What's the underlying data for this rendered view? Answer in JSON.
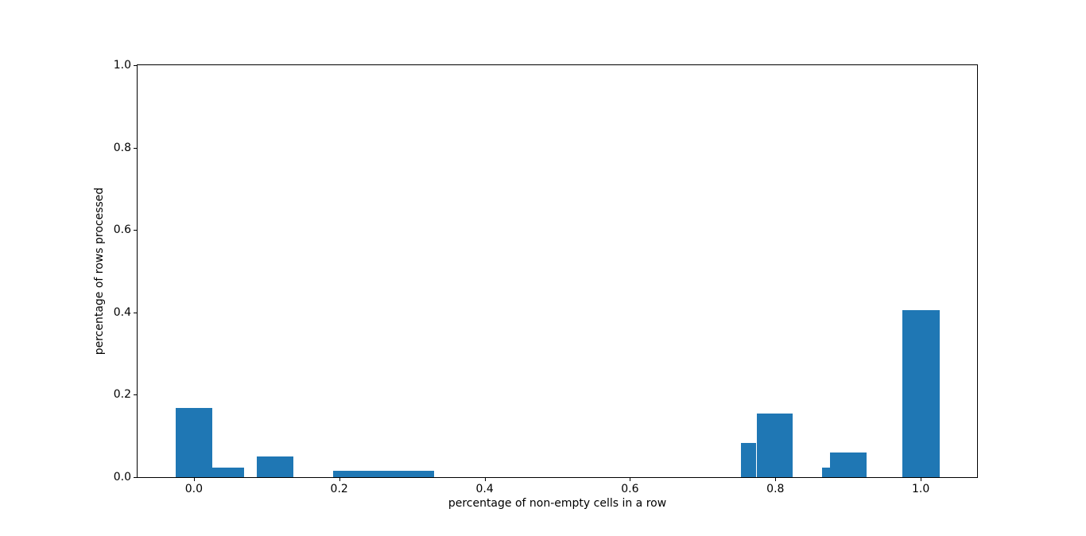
{
  "chart_data": {
    "type": "bar",
    "title": "",
    "xlabel": "percentage of non-empty cells in a row",
    "ylabel": "percentage of rows processed",
    "xlim": [
      -0.0775,
      1.0775
    ],
    "ylim": [
      0,
      1.0
    ],
    "grid": false,
    "legend": null,
    "bar_color": "#1f77b4",
    "frame_color": "#000000",
    "background_color": "#ffffff",
    "xticks": [
      {
        "value": 0.0,
        "label": "0.0"
      },
      {
        "value": 0.2,
        "label": "0.2"
      },
      {
        "value": 0.4,
        "label": "0.4"
      },
      {
        "value": 0.6,
        "label": "0.6"
      },
      {
        "value": 0.8,
        "label": "0.8"
      },
      {
        "value": 1.0,
        "label": "1.0"
      }
    ],
    "yticks": [
      {
        "value": 0.0,
        "label": "0.0"
      },
      {
        "value": 0.2,
        "label": "0.2"
      },
      {
        "value": 0.4,
        "label": "0.4"
      },
      {
        "value": 0.6,
        "label": "0.6"
      },
      {
        "value": 0.8,
        "label": "0.8"
      },
      {
        "value": 1.0,
        "label": "1.0"
      }
    ],
    "bars": [
      {
        "x0": -0.025,
        "x1": 0.025,
        "height": 0.168
      },
      {
        "x0": 0.025,
        "x1": 0.069,
        "height": 0.024
      },
      {
        "x0": 0.087,
        "x1": 0.137,
        "height": 0.051
      },
      {
        "x0": 0.192,
        "x1": 0.33,
        "height": 0.015
      },
      {
        "x0": 0.753,
        "x1": 0.774,
        "height": 0.083
      },
      {
        "x0": 0.774,
        "x1": 0.824,
        "height": 0.155
      },
      {
        "x0": 0.864,
        "x1": 0.875,
        "height": 0.024
      },
      {
        "x0": 0.875,
        "x1": 0.926,
        "height": 0.059
      },
      {
        "x0": 0.975,
        "x1": 1.026,
        "height": 0.405
      }
    ]
  }
}
